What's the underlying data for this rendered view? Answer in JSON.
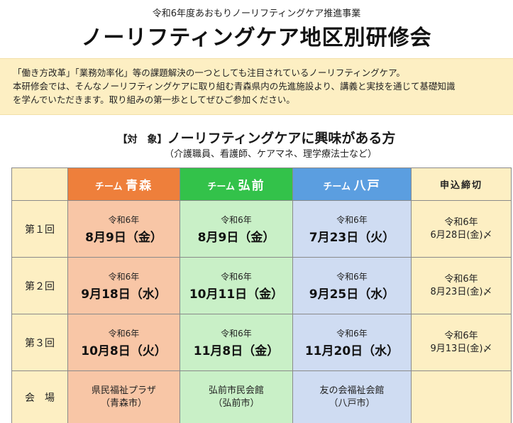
{
  "header": {
    "subtitle": "令和6年度あおもりノーリフティングケア推進事業",
    "title": "ノーリフティングケア地区別研修会"
  },
  "notice": {
    "line1": "「働き方改革」「業務効率化」等の課題解決の一つとしても注目されているノーリフティングケア。",
    "line2": "本研修会では、そんなノーリフティングケアに取り組む青森県内の先進施設より、講義と実技を通じて基礎知識",
    "line3": "を学んでいただきます。取り組みの第一歩としてぜひご参加ください。"
  },
  "target": {
    "prefix": "【対　象】",
    "main": "ノーリフティングケアに興味がある方",
    "sub": "（介護職員、看護師、ケアマネ、理学療法士など）"
  },
  "table": {
    "teams": [
      {
        "prefix": "チーム",
        "name": "青森"
      },
      {
        "prefix": "チーム",
        "name": "弘前"
      },
      {
        "prefix": "チーム",
        "name": "八戸"
      }
    ],
    "deadline_header": "申込締切",
    "rows": [
      {
        "label": "第１回",
        "dates": [
          {
            "era": "令和6年",
            "date": "8月9日（金）"
          },
          {
            "era": "令和6年",
            "date": "8月9日（金）"
          },
          {
            "era": "令和6年",
            "date": "7月23日（火）"
          }
        ],
        "deadline_era": "令和6年",
        "deadline_date": "6月28日(金)〆"
      },
      {
        "label": "第２回",
        "dates": [
          {
            "era": "令和6年",
            "date": "9月18日（水）"
          },
          {
            "era": "令和6年",
            "date": "10月11日（金）"
          },
          {
            "era": "令和6年",
            "date": "9月25日（水）"
          }
        ],
        "deadline_era": "令和6年",
        "deadline_date": "8月23日(金)〆"
      },
      {
        "label": "第３回",
        "dates": [
          {
            "era": "令和6年",
            "date": "10月8日（火）"
          },
          {
            "era": "令和6年",
            "date": "11月8日（金）"
          },
          {
            "era": "令和6年",
            "date": "11月20日（水）"
          }
        ],
        "deadline_era": "令和6年",
        "deadline_date": "9月13日(金)〆"
      }
    ],
    "venue_label": "会　場",
    "venues": [
      {
        "name": "県民福祉プラザ",
        "city": "（青森市）"
      },
      {
        "name": "弘前市民会館",
        "city": "（弘前市）"
      },
      {
        "name": "友の会福祉会館",
        "city": "（八戸市）"
      }
    ]
  },
  "colors": {
    "aomori": "#ee7f3b",
    "hirosaki": "#33c24a",
    "hachinohe": "#5b9ee0",
    "cream": "#fdefc3"
  }
}
